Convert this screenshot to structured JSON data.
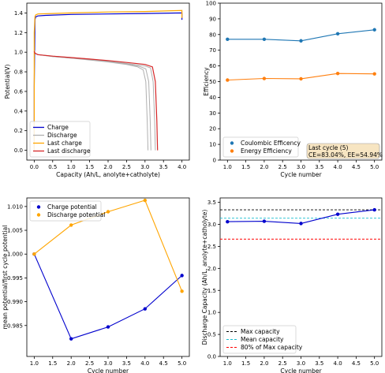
{
  "chart_data": [
    {
      "id": "voltage",
      "type": "line",
      "xlabel": "Capacity (Ah/L, anolyte+catholyte)",
      "ylabel": "Potential(V)",
      "xlim": [
        -0.2,
        4.2
      ],
      "ylim": [
        -0.1,
        1.5
      ],
      "xticks": [
        "0.0",
        "0.5",
        "1.0",
        "1.5",
        "2.0",
        "2.5",
        "3.0",
        "3.5",
        "4.0"
      ],
      "yticks": [
        "0.0",
        "0.2",
        "0.4",
        "0.6",
        "0.8",
        "1.0",
        "1.2",
        "1.4"
      ],
      "legend_placement": "lower-left",
      "legend": [
        {
          "label": "Charge",
          "color": "#0000cd"
        },
        {
          "label": "Discharge",
          "color": "#b0b0b0"
        },
        {
          "label": "Last charge",
          "color": "#ffa500"
        },
        {
          "label": "Last discharge",
          "color": "#d62728"
        }
      ],
      "series": [
        {
          "name": "Charge",
          "color": "#0000cd",
          "x": [
            0.0,
            0.0,
            0.02,
            0.04,
            0.1,
            0.3,
            1.0,
            2.0,
            3.0,
            4.0,
            4.0
          ],
          "y": [
            0.0,
            0.65,
            1.33,
            1.36,
            1.37,
            1.375,
            1.385,
            1.39,
            1.395,
            1.4,
            1.33
          ]
        },
        {
          "name": "Discharge",
          "color": "#b0b0b0",
          "x": [
            0.0,
            0.02,
            0.1,
            0.5,
            1.0,
            1.5,
            2.0,
            2.5,
            2.8,
            2.95,
            3.02,
            3.06,
            3.08
          ],
          "y": [
            1.02,
            0.99,
            0.975,
            0.955,
            0.94,
            0.92,
            0.9,
            0.875,
            0.85,
            0.82,
            0.7,
            0.3,
            0.0
          ]
        },
        {
          "name": "Discharge",
          "color": "#b0b0b0",
          "x": [
            0.0,
            0.02,
            0.1,
            0.5,
            1.0,
            1.5,
            2.0,
            2.5,
            2.85,
            3.02,
            3.1,
            3.14,
            3.16
          ],
          "y": [
            1.02,
            0.99,
            0.975,
            0.955,
            0.94,
            0.925,
            0.905,
            0.88,
            0.855,
            0.83,
            0.7,
            0.3,
            0.0
          ]
        },
        {
          "name": "Discharge",
          "color": "#b0b0b0",
          "x": [
            0.0,
            0.02,
            0.1,
            0.5,
            1.0,
            1.5,
            2.0,
            2.5,
            3.0,
            3.15,
            3.22,
            3.26,
            3.28
          ],
          "y": [
            1.02,
            0.99,
            0.975,
            0.96,
            0.945,
            0.93,
            0.91,
            0.885,
            0.86,
            0.84,
            0.7,
            0.3,
            0.0
          ]
        },
        {
          "name": "Last charge",
          "color": "#ffa500",
          "x": [
            0.0,
            0.0,
            0.02,
            0.04,
            0.1,
            0.5,
            1.0,
            2.0,
            3.0,
            4.0,
            4.0
          ],
          "y": [
            0.0,
            1.2,
            1.36,
            1.38,
            1.39,
            1.395,
            1.4,
            1.41,
            1.415,
            1.425,
            1.35
          ]
        },
        {
          "name": "Last discharge",
          "color": "#d62728",
          "x": [
            0.0,
            0.02,
            0.1,
            0.5,
            1.0,
            1.5,
            2.0,
            2.5,
            3.0,
            3.2,
            3.28,
            3.32,
            3.34
          ],
          "y": [
            1.01,
            0.99,
            0.975,
            0.96,
            0.945,
            0.93,
            0.915,
            0.895,
            0.875,
            0.85,
            0.7,
            0.3,
            0.0
          ]
        }
      ]
    },
    {
      "id": "efficiency",
      "type": "line",
      "xlabel": "Cycle number",
      "ylabel": "Efficiency",
      "xlim": [
        0.8,
        5.2
      ],
      "ylim": [
        0,
        100
      ],
      "xticks": [
        "1.0",
        "1.5",
        "2.0",
        "2.5",
        "3.0",
        "3.5",
        "4.0",
        "4.5",
        "5.0"
      ],
      "yticks": [
        "0",
        "10",
        "20",
        "30",
        "40",
        "50",
        "60",
        "70",
        "80",
        "90",
        "100"
      ],
      "legend_placement": "lower-left",
      "legend": [
        {
          "label": "Coulombic Efficency",
          "color": "#1f77b4"
        },
        {
          "label": "Energy Efficiency",
          "color": "#ff7f0e"
        }
      ],
      "annotation": {
        "line1": "Last cycle (5)",
        "line2": "CE=83.04%, EE=54.94%"
      },
      "x": [
        1,
        2,
        3,
        4,
        5
      ],
      "series": [
        {
          "name": "Coulombic Efficency",
          "color": "#1f77b4",
          "values": [
            77.0,
            77.0,
            76.0,
            80.5,
            83.04
          ]
        },
        {
          "name": "Energy Efficiency",
          "color": "#ff7f0e",
          "values": [
            51.0,
            52.0,
            51.8,
            55.2,
            54.94
          ]
        }
      ]
    },
    {
      "id": "mean-potential",
      "type": "line",
      "xlabel": "Cycle number",
      "ylabel": "mean potential/first cycle potential",
      "xlim": [
        0.8,
        5.2
      ],
      "ylim": [
        0.9785,
        1.0118
      ],
      "xticks": [
        "1.0",
        "1.5",
        "2.0",
        "2.5",
        "3.0",
        "3.5",
        "4.0",
        "4.5",
        "5.0"
      ],
      "yticks": [
        "0.985",
        "0.990",
        "0.995",
        "1.000",
        "1.005",
        "1.010"
      ],
      "legend_placement": "upper-left",
      "legend": [
        {
          "label": "Charge potential",
          "color": "#0000cd"
        },
        {
          "label": "Discharge potential",
          "color": "#ffa500"
        }
      ],
      "x": [
        1,
        2,
        3,
        4,
        5
      ],
      "series": [
        {
          "name": "Charge potential",
          "color": "#0000cd",
          "values": [
            1.0,
            0.9822,
            0.9847,
            0.9885,
            0.9955
          ]
        },
        {
          "name": "Discharge potential",
          "color": "#ffa500",
          "values": [
            1.0,
            1.0061,
            1.0089,
            1.0113,
            0.9922
          ]
        }
      ]
    },
    {
      "id": "discharge-capacity",
      "type": "line",
      "xlabel": "Cycle number",
      "ylabel": "Discharge Capacity (Ah/L, anolyte+catholyte)",
      "xlim": [
        0.8,
        5.2
      ],
      "ylim": [
        0,
        3.6
      ],
      "xticks": [
        "1.0",
        "1.5",
        "2.0",
        "2.5",
        "3.0",
        "3.5",
        "4.0",
        "4.5",
        "5.0"
      ],
      "yticks": [
        "0.0",
        "0.5",
        "1.0",
        "1.5",
        "2.0",
        "2.5",
        "3.0",
        "3.5"
      ],
      "legend_placement": "lower-left",
      "legend": [
        {
          "label": "Max capacity",
          "color": "#000000"
        },
        {
          "label": "Mean capacity",
          "color": "#17becf"
        },
        {
          "label": "80% of Max capacity",
          "color": "#ff0000"
        }
      ],
      "x": [
        1,
        2,
        3,
        4,
        5
      ],
      "values": [
        3.06,
        3.07,
        3.02,
        3.23,
        3.33
      ],
      "hlines": [
        {
          "label": "Max capacity",
          "value": 3.33,
          "color": "#000000"
        },
        {
          "label": "Mean capacity",
          "value": 3.14,
          "color": "#17becf"
        },
        {
          "label": "80% of Max capacity",
          "value": 2.664,
          "color": "#ff0000"
        }
      ]
    }
  ]
}
